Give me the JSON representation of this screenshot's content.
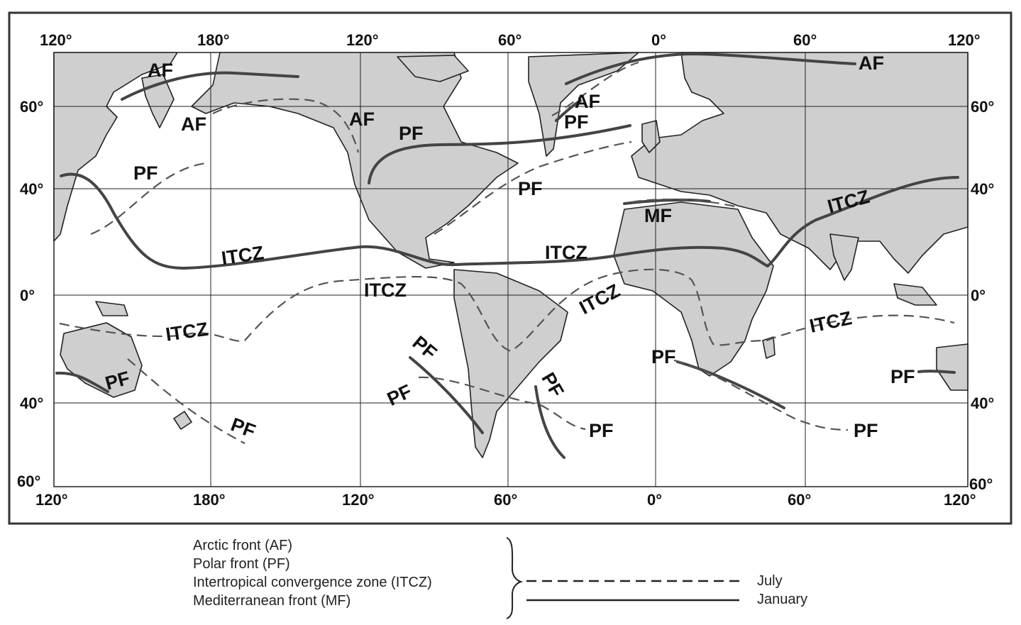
{
  "map": {
    "top_ticks": [
      "120°",
      "180°",
      "120°",
      "60°",
      "0°",
      "60°",
      "120°"
    ],
    "bottom_ticks": [
      "120°",
      "180°",
      "120°",
      "60°",
      "0°",
      "60°",
      "120°"
    ],
    "left_ticks": [
      "60°",
      "40°",
      "0°",
      "40°",
      "60°"
    ],
    "right_ticks": [
      "60°",
      "40°",
      "0°",
      "40°",
      "60°"
    ],
    "labels": {
      "af_pacific_jan": "AF",
      "af_pacific_jul": "AF",
      "af_america_jul": "AF",
      "af_atlantic_jul": "AF",
      "af_siberia_jan": "AF",
      "pf_america_jan": "PF",
      "pf_atlantic_jul": "PF",
      "pf_europe_jul": "PF",
      "pf_pacific_jul": "PF",
      "pf_australia_jan": "PF",
      "pf_nz_jul": "PF",
      "pf_chile_jan": "PF",
      "pf_chile_jul": "PF",
      "pf_argentina_jan": "PF",
      "pf_south_atlantic_jul": "PF",
      "pf_south_africa_jan": "PF",
      "pf_indian_jul": "PF",
      "pf_east_indian": "PF",
      "mf": "MF",
      "itcz_pacific_jan": "ITCZ",
      "itcz_atlantic_jan": "ITCZ",
      "itcz_asia_jan": "ITCZ",
      "itcz_pacific_jul": "ITCZ",
      "itcz_sw_pacific_jul": "ITCZ",
      "itcz_atlantic_jul": "ITCZ",
      "itcz_indian_jul": "ITCZ"
    }
  },
  "legend": {
    "items": [
      "Arctic front (AF)",
      "Polar front (PF)",
      "Intertropical convergence zone (ITCZ)",
      "Mediterranean front (MF)"
    ],
    "july_label": "July",
    "january_label": "January"
  }
}
